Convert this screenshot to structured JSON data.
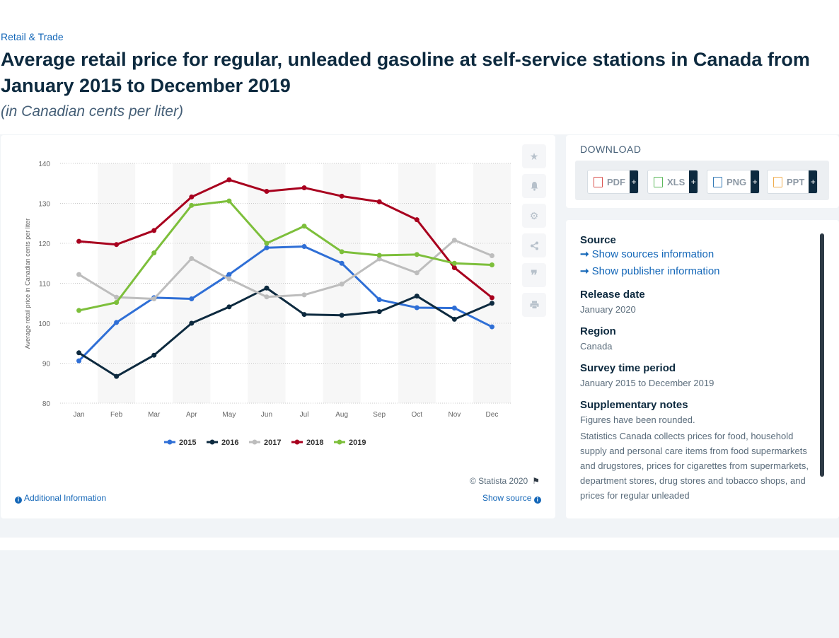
{
  "header": {
    "category": "Retail & Trade",
    "title": "Average retail price for regular, unleaded gasoline at self-service stations in Canada from January 2015 to December 2019",
    "subtitle": "(in Canadian cents per liter)"
  },
  "toolbar": {
    "icons": [
      "star-icon",
      "bell-icon",
      "gear-icon",
      "share-icon",
      "quote-icon",
      "print-icon"
    ]
  },
  "chart_footer": {
    "credit": "© Statista 2020",
    "additional_info": "Additional Information",
    "show_source": "Show source"
  },
  "download": {
    "title": "DOWNLOAD",
    "buttons": [
      {
        "label": "PDF",
        "color": "#d9534f"
      },
      {
        "label": "XLS",
        "color": "#5cb85c"
      },
      {
        "label": "PNG",
        "color": "#337ab7"
      },
      {
        "label": "PPT",
        "color": "#f0ad4e"
      }
    ],
    "plus": "+"
  },
  "meta": {
    "source_heading": "Source",
    "show_sources": "Show sources information",
    "show_publisher": "Show publisher information",
    "release_heading": "Release date",
    "release_value": "January 2020",
    "region_heading": "Region",
    "region_value": "Canada",
    "survey_heading": "Survey time period",
    "survey_value": "January 2015 to December 2019",
    "notes_heading": "Supplementary notes",
    "notes_1": "Figures have been rounded.",
    "notes_2": "Statistics Canada collects prices for food, household supply and personal care items from food supermarkets and drugstores, prices for cigarettes from supermarkets, department stores, drug stores and tobacco shops, and prices for regular unleaded"
  },
  "chart_data": {
    "type": "line",
    "ylabel": "Average retail price in Canadian cents per liter",
    "xlabel": "",
    "ylim": [
      80,
      140
    ],
    "yticks": [
      80,
      90,
      100,
      110,
      120,
      130,
      140
    ],
    "categories": [
      "Jan",
      "Feb",
      "Mar",
      "Apr",
      "May",
      "Jun",
      "Jul",
      "Aug",
      "Sep",
      "Oct",
      "Nov",
      "Dec"
    ],
    "legend_position": "bottom",
    "grid": true,
    "series": [
      {
        "name": "2015",
        "color": "#2f6fd6",
        "values": [
          90.6,
          100.2,
          106.4,
          106.1,
          112.2,
          118.9,
          119.2,
          115.0,
          105.9,
          103.9,
          103.8,
          99.1
        ]
      },
      {
        "name": "2016",
        "color": "#0d2a3f",
        "values": [
          92.6,
          86.7,
          92.0,
          100.0,
          104.1,
          108.8,
          102.2,
          102.0,
          102.9,
          106.8,
          101.0,
          105.0
        ]
      },
      {
        "name": "2017",
        "color": "#bdbdbd",
        "values": [
          112.2,
          106.5,
          106.1,
          116.2,
          111.1,
          106.6,
          107.1,
          109.8,
          116.1,
          112.6,
          120.8,
          116.9
        ]
      },
      {
        "name": "2018",
        "color": "#a8001e",
        "values": [
          120.5,
          119.7,
          123.2,
          131.6,
          135.9,
          133.0,
          133.9,
          131.8,
          130.4,
          125.9,
          113.9,
          106.4
        ]
      },
      {
        "name": "2019",
        "color": "#7dbf3b",
        "values": [
          103.2,
          105.2,
          117.6,
          129.5,
          130.6,
          120.0,
          124.3,
          117.9,
          117.0,
          117.2,
          115.0,
          114.6
        ]
      }
    ]
  }
}
